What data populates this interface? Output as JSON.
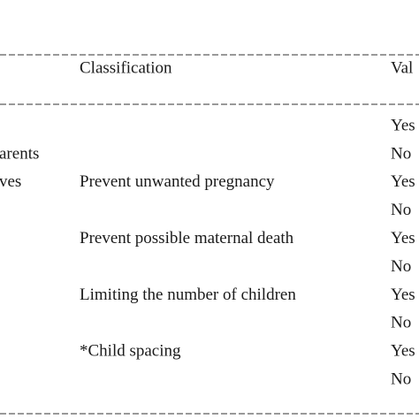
{
  "table": {
    "header": {
      "classification": "Classification",
      "value": "Val"
    },
    "rows": [
      {
        "value": "Yes"
      },
      {
        "variable": "arents",
        "value": "No"
      },
      {
        "variable": "ves",
        "classification": "Prevent unwanted pregnancy",
        "value": "Yes"
      },
      {
        "value": "No"
      },
      {
        "classification": "Prevent possible maternal death",
        "value": "Yes"
      },
      {
        "value": "No"
      },
      {
        "classification": "Limiting the number of children",
        "value": "Yes"
      },
      {
        "value": "No"
      },
      {
        "classification": "*Child spacing",
        "value": "Yes"
      },
      {
        "value": "No"
      }
    ]
  }
}
